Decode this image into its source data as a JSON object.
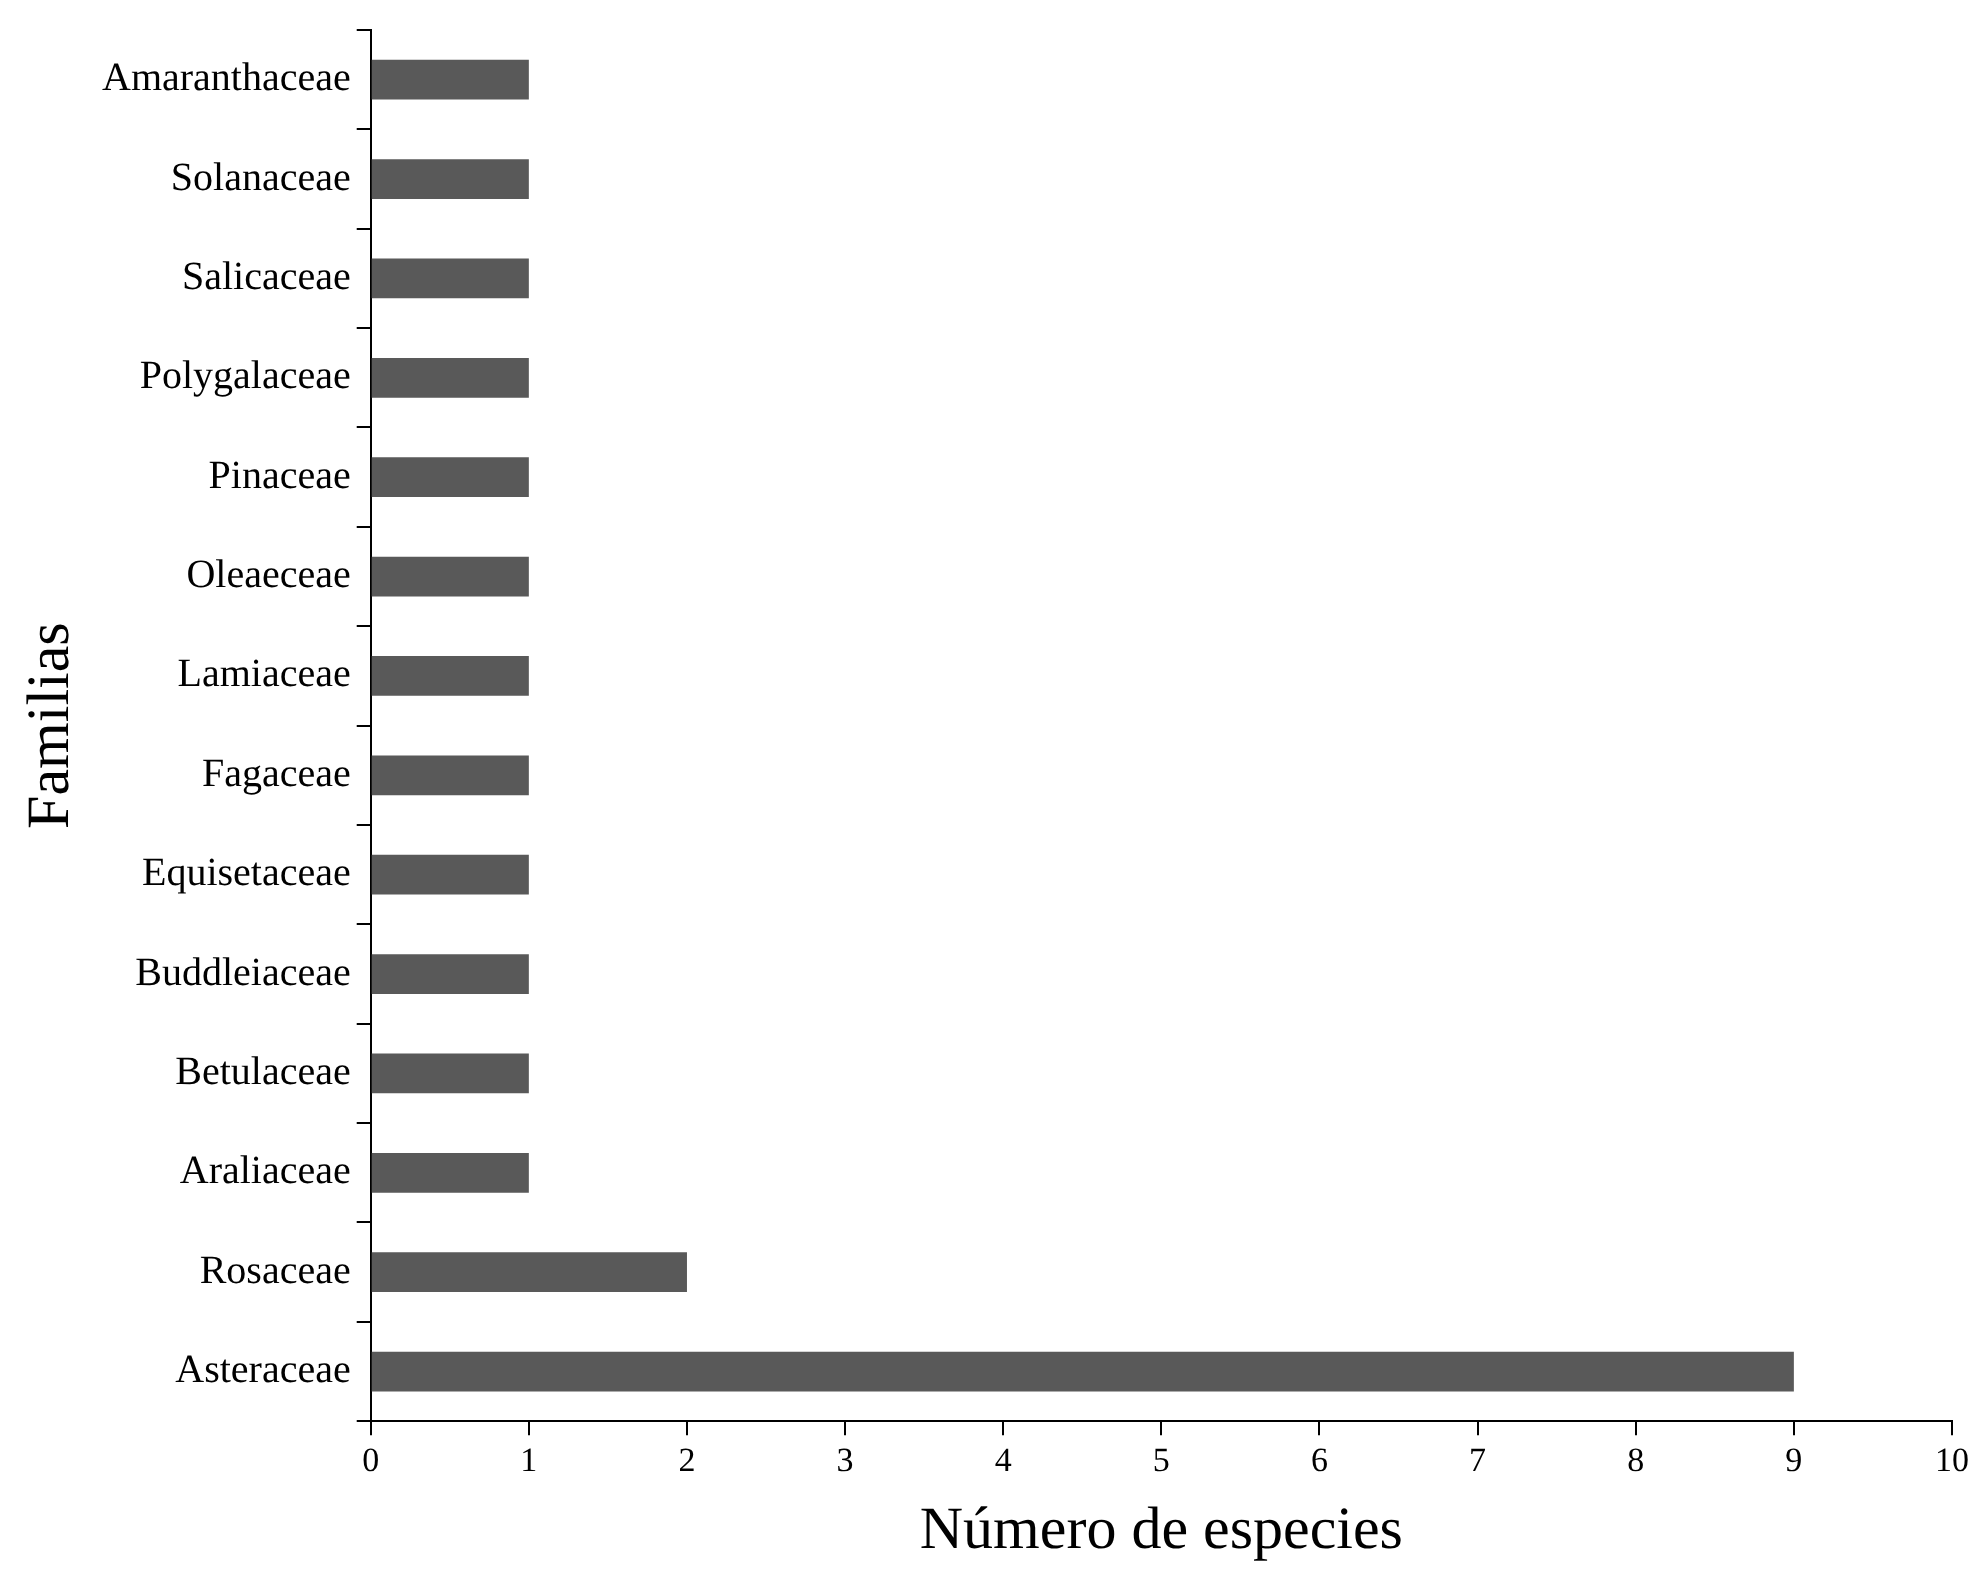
{
  "chart_data": {
    "type": "bar",
    "orientation": "horizontal",
    "xlabel": "Número de especies",
    "ylabel": "Familias",
    "categories": [
      "Amaranthaceae",
      "Solanaceae",
      "Salicaceae",
      "Polygalaceae",
      "Pinaceae",
      "Oleaeceae",
      "Lamiaceae",
      "Fagaceae",
      "Equisetaceae",
      "Buddleiaceae",
      "Betulaceae",
      "Araliaceae",
      "Rosaceae",
      "Asteraceae"
    ],
    "values": [
      1,
      1,
      1,
      1,
      1,
      1,
      1,
      1,
      1,
      1,
      1,
      1,
      2,
      9
    ],
    "color": "#595959",
    "xlim": [
      0,
      10
    ],
    "xticks": [
      0,
      1,
      2,
      3,
      4,
      5,
      6,
      7,
      8,
      9,
      10
    ]
  }
}
